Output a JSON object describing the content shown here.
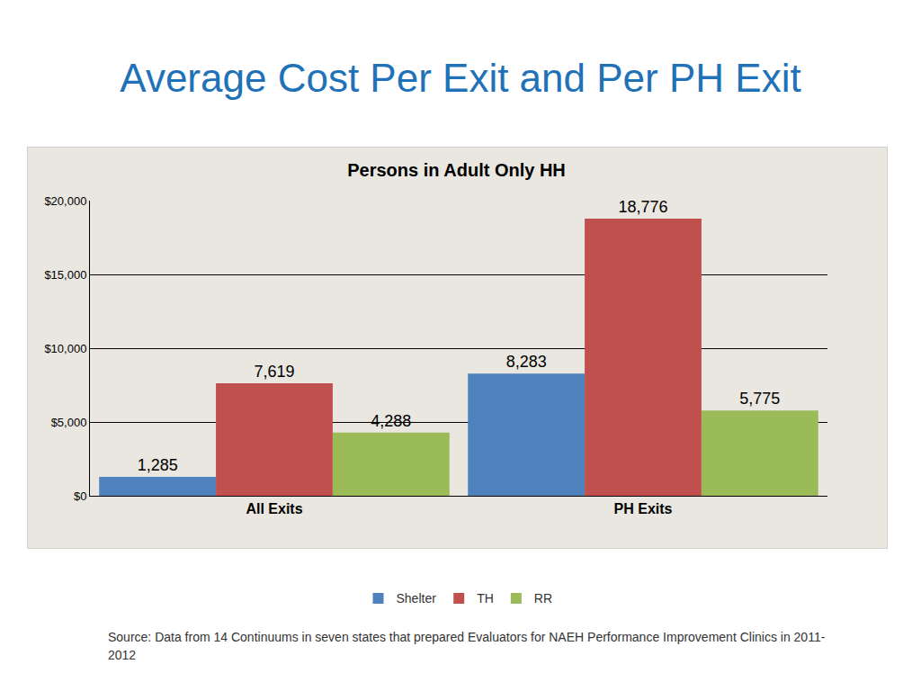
{
  "heading": "Average Cost Per Exit and Per PH Exit",
  "source": "Source: Data from 14 Continuums in seven states that prepared Evaluators for NAEH Performance Improvement  Clinics in 2011-2012",
  "chart_data": {
    "type": "bar",
    "title": "Persons in Adult Only HH",
    "categories": [
      "All Exits",
      "PH Exits"
    ],
    "series": [
      {
        "name": "Shelter",
        "color": "#4f81bd",
        "values": [
          1285,
          8283
        ],
        "value_labels": [
          "1,285",
          "8,283"
        ]
      },
      {
        "name": "TH",
        "color": "#c0504d",
        "values": [
          7619,
          18776
        ],
        "value_labels": [
          "7,619",
          "18,776"
        ]
      },
      {
        "name": "RR",
        "color": "#9bbb59",
        "values": [
          4288,
          5775
        ],
        "value_labels": [
          "4,288",
          "5,775"
        ]
      }
    ],
    "ylim": [
      0,
      20000
    ],
    "yticks": [
      {
        "value": 0,
        "label": "$0"
      },
      {
        "value": 5000,
        "label": "$5,000"
      },
      {
        "value": 10000,
        "label": "$10,000"
      },
      {
        "value": 15000,
        "label": "$15,000"
      },
      {
        "value": 20000,
        "label": "$20,000"
      }
    ],
    "grid": true,
    "legend": "bottom",
    "data_labels": true
  }
}
